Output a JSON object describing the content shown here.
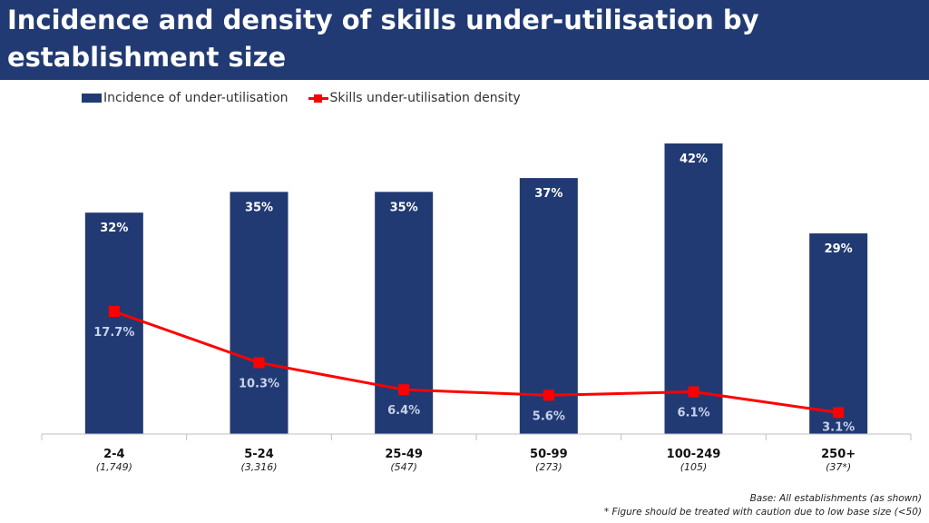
{
  "chart_data": {
    "type": "bar",
    "title": "Incidence and density of skills under-utilisation by establishment size",
    "categories": [
      "2-4",
      "5-24",
      "25-49",
      "50-99",
      "100-249",
      "250+"
    ],
    "base_sizes": [
      "(1,749)",
      "(3,316)",
      "(547)",
      "(273)",
      "(105)",
      "(37*)"
    ],
    "series": [
      {
        "name": "Incidence of under-utilisation",
        "type": "bar",
        "color": "#213a73",
        "values": [
          32,
          35,
          35,
          37,
          42,
          29
        ],
        "labels": [
          "32%",
          "35%",
          "35%",
          "37%",
          "42%",
          "29%"
        ]
      },
      {
        "name": "Skills under-utilisation density",
        "type": "line",
        "color": "#ff0000",
        "values": [
          17.7,
          10.3,
          6.4,
          5.6,
          6.1,
          3.1
        ],
        "labels": [
          "17.7%",
          "10.3%",
          "6.4%",
          "5.6%",
          "6.1%",
          "3.1%"
        ]
      }
    ],
    "ylim": [
      0,
      42
    ],
    "legend_position": "top-left",
    "grid": false
  },
  "notes": {
    "base": "Base: All establishments (as shown)",
    "caution": "* Figure should be treated with caution due to low base size (<50)"
  }
}
